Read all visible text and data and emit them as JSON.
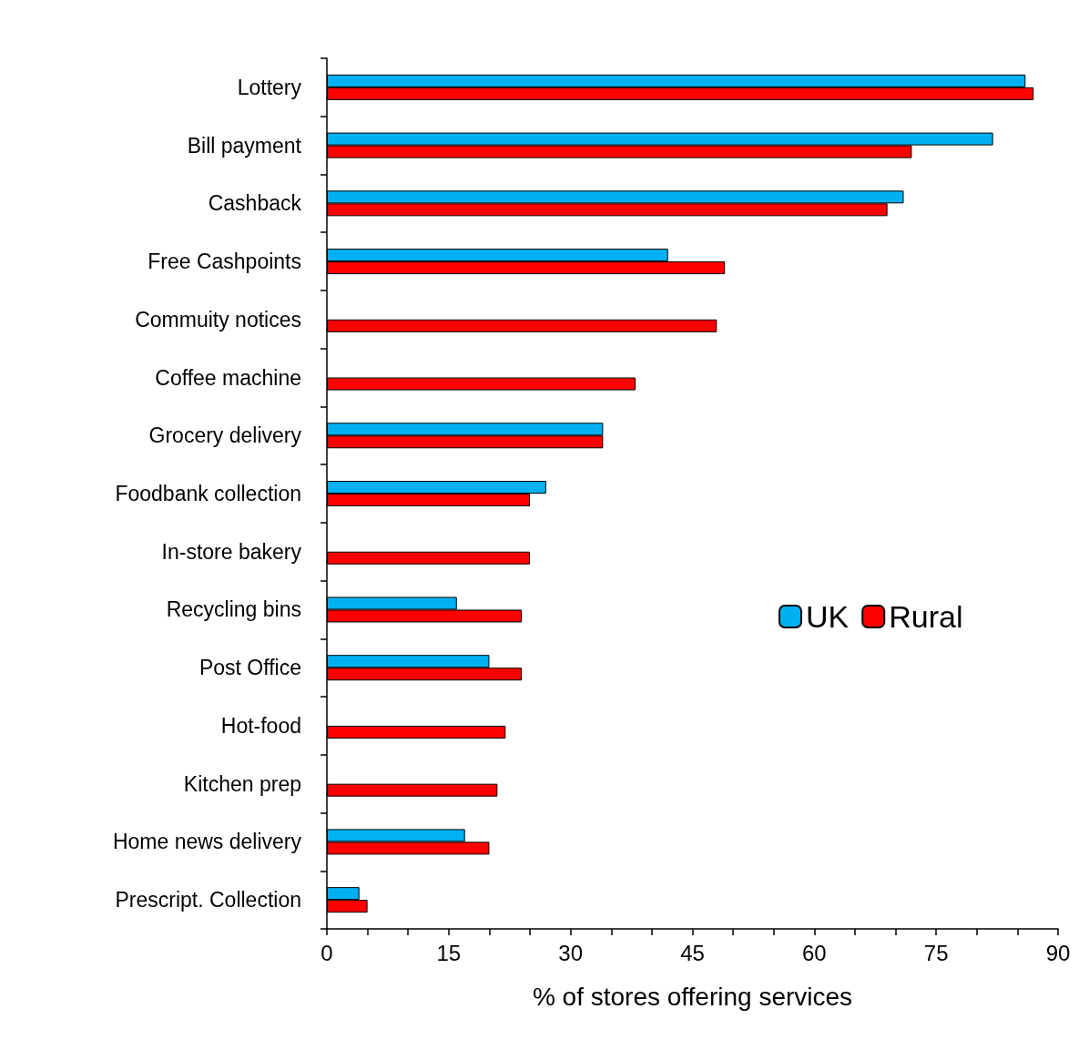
{
  "chart_data": {
    "type": "bar",
    "orientation": "horizontal",
    "xlabel": "% of stores offering services",
    "categories": [
      "Lottery",
      "Bill payment",
      "Cashback",
      "Free Cashpoints",
      "Commuity notices",
      "Coffee machine",
      "Grocery delivery",
      "Foodbank collection",
      "In-store bakery",
      "Recycling bins",
      "Post Office",
      "Hot-food",
      "Kitchen prep",
      "Home news delivery",
      "Prescript. Collection"
    ],
    "series": [
      {
        "name": "UK",
        "color": "#00b0f0",
        "values": [
          86,
          82,
          71,
          42,
          null,
          null,
          34,
          27,
          null,
          16,
          20,
          null,
          null,
          17,
          4
        ]
      },
      {
        "name": "Rural",
        "color": "#ff0000",
        "values": [
          87,
          72,
          69,
          49,
          48,
          38,
          34,
          25,
          25,
          24,
          24,
          22,
          21,
          20,
          5
        ]
      }
    ],
    "xlim": [
      0,
      90
    ],
    "xticks": [
      0,
      {
        "value": 5,
        "label": null
      },
      {
        "value": 10,
        "label": null
      },
      15,
      {
        "value": 20,
        "label": null
      },
      {
        "value": 25,
        "label": null
      },
      30,
      {
        "value": 35,
        "label": null
      },
      {
        "value": 40,
        "label": null
      },
      45,
      {
        "value": 50,
        "label": null
      },
      {
        "value": 55,
        "label": null
      },
      60,
      {
        "value": 65,
        "label": null
      },
      {
        "value": 70,
        "label": null
      },
      75,
      {
        "value": 80,
        "label": null
      },
      {
        "value": 85,
        "label": null
      },
      90
    ],
    "grid": false,
    "legend": "right"
  }
}
